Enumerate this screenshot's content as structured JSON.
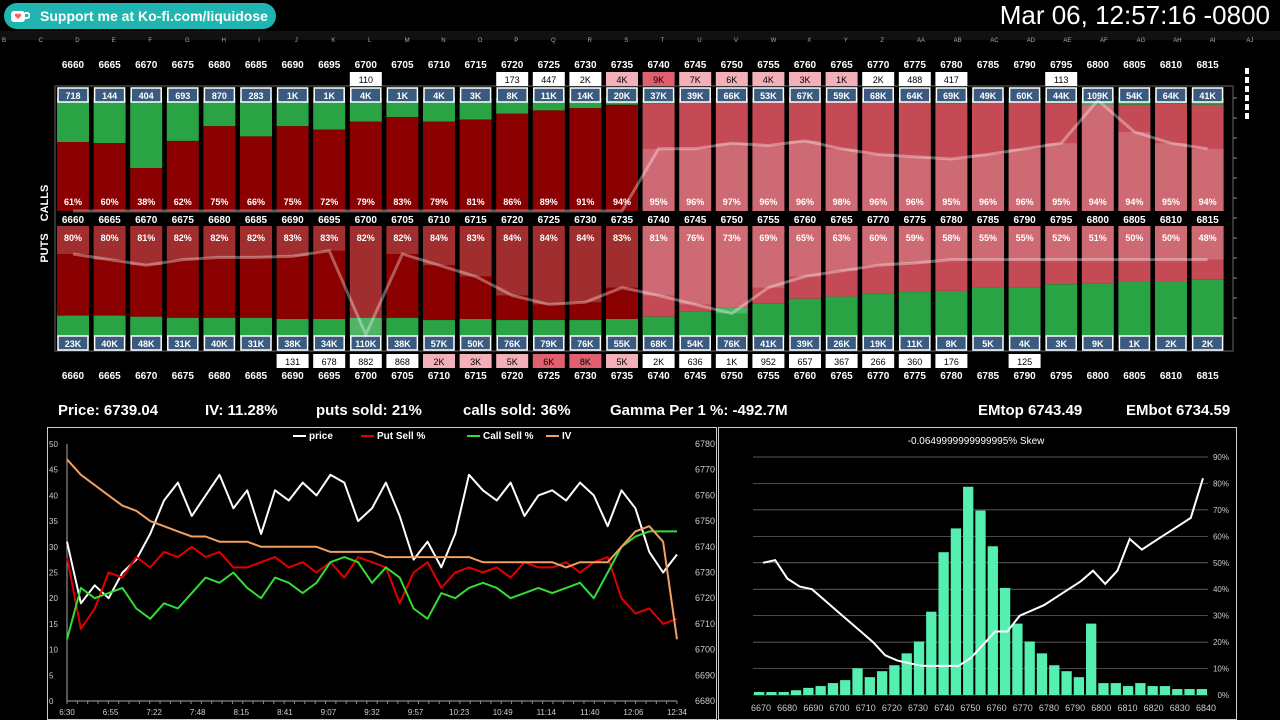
{
  "header": {
    "kofi_text": "Support me at Ko-fi.com/liquidose",
    "clock": "Mar 06, 12:57:16 -0800"
  },
  "sheet_columns": [
    "B",
    "C",
    "D",
    "E",
    "F",
    "G",
    "H",
    "I",
    "J",
    "K",
    "L",
    "M",
    "N",
    "O",
    "P",
    "Q",
    "R",
    "S",
    "T",
    "U",
    "V",
    "W",
    "X",
    "Y",
    "Z",
    "AA",
    "AB",
    "AC",
    "AD",
    "AE",
    "AF",
    "AG",
    "AH",
    "AI",
    "AJ"
  ],
  "labels": {
    "calls": "CALLS",
    "puts": "PUTS"
  },
  "stats": {
    "price": "Price: 6739.04",
    "iv": "IV: 11.28%",
    "puts_sold": "puts sold: 21%",
    "calls_sold": "calls sold: 36%",
    "gamma": "Gamma Per 1 %:  -492.7M",
    "emtop": "EMtop 6743.49",
    "embot": "EMbot 6734.59"
  },
  "colors": {
    "green": "#2aa345",
    "dark_red": "#8b0000",
    "light_red": "#c44a55",
    "white_band": "#e8e8e8",
    "chip": "#3a5a80",
    "line_price": "#ffffff",
    "line_put": "#e00000",
    "line_call": "#33dd33",
    "line_iv": "#f0a060",
    "hist_bar": "#55f0b0"
  },
  "chart_data": [
    {
      "type": "bar",
      "title": "",
      "strikes": [
        "6660",
        "6665",
        "6670",
        "6675",
        "6680",
        "6685",
        "6690",
        "6695",
        "6700",
        "6705",
        "6710",
        "6715",
        "6720",
        "6725",
        "6730",
        "6735",
        "6740",
        "6745",
        "6750",
        "6755",
        "6760",
        "6765",
        "6770",
        "6775",
        "6780",
        "6785",
        "6790",
        "6795",
        "6800",
        "6805",
        "6810",
        "6815"
      ],
      "calls": {
        "volume_top": [
          "",
          "",
          "",
          "",
          "",
          "",
          "",
          "",
          "110",
          "",
          "",
          "",
          "173",
          "447",
          "2K",
          "4K",
          "9K",
          "7K",
          "6K",
          "4K",
          "3K",
          "1K",
          "2K",
          "488",
          "417",
          "",
          "",
          "113",
          "",
          "",
          "",
          ""
        ],
        "chips": [
          "718",
          "144",
          "404",
          "693",
          "870",
          "283",
          "1K",
          "1K",
          "4K",
          "1K",
          "4K",
          "3K",
          "8K",
          "11K",
          "14K",
          "20K",
          "37K",
          "39K",
          "66K",
          "53K",
          "67K",
          "59K",
          "68K",
          "64K",
          "69K",
          "49K",
          "60K",
          "44K",
          "109K",
          "54K",
          "64K",
          "41K"
        ],
        "sell_pct": [
          61,
          60,
          38,
          62,
          75,
          66,
          75,
          72,
          79,
          83,
          79,
          81,
          86,
          89,
          91,
          94,
          95,
          96,
          97,
          96,
          96,
          98,
          96,
          96,
          95,
          96,
          96,
          95,
          94,
          94,
          95,
          94
        ],
        "sell_pct_labels": [
          "61%",
          "60%",
          "38%",
          "62%",
          "75%",
          "66%",
          "75%",
          "72%",
          "79%",
          "83%",
          "79%",
          "81%",
          "86%",
          "89%",
          "91%",
          "94%",
          "95%",
          "96%",
          "97%",
          "96%",
          "96%",
          "98%",
          "96%",
          "96%",
          "95%",
          "96%",
          "96%",
          "95%",
          "94%",
          "94%",
          "95%",
          "94%"
        ],
        "band": [
          0,
          0,
          0,
          0,
          0,
          0,
          0,
          0,
          0,
          0,
          0,
          0,
          0,
          0,
          0,
          0,
          0.55,
          0.55,
          0.6,
          0.58,
          0.62,
          0.55,
          0.5,
          0.48,
          0.46,
          0.5,
          0.55,
          0.6,
          0.98,
          0.7,
          0.6,
          0.55
        ]
      },
      "puts": {
        "chips": [
          "23K",
          "40K",
          "48K",
          "31K",
          "40K",
          "31K",
          "38K",
          "34K",
          "110K",
          "38K",
          "57K",
          "50K",
          "76K",
          "79K",
          "76K",
          "55K",
          "68K",
          "54K",
          "76K",
          "41K",
          "39K",
          "26K",
          "19K",
          "11K",
          "8K",
          "5K",
          "4K",
          "3K",
          "9K",
          "1K",
          "2K",
          "2K"
        ],
        "volume_bottom": [
          "",
          "",
          "",
          "",
          "",
          "",
          "131",
          "678",
          "882",
          "868",
          "2K",
          "3K",
          "5K",
          "6K",
          "8K",
          "5K",
          "2K",
          "636",
          "1K",
          "952",
          "657",
          "367",
          "266",
          "360",
          "176",
          "",
          "125",
          "",
          "",
          "",
          "",
          ""
        ],
        "sell_pct": [
          80,
          80,
          81,
          82,
          82,
          82,
          83,
          83,
          82,
          82,
          84,
          83,
          84,
          84,
          84,
          83,
          81,
          76,
          73,
          69,
          65,
          63,
          60,
          59,
          58,
          55,
          55,
          52,
          51,
          50,
          50,
          48
        ],
        "sell_pct_labels": [
          "80%",
          "80%",
          "81%",
          "82%",
          "82%",
          "82%",
          "83%",
          "83%",
          "82%",
          "82%",
          "84%",
          "83%",
          "84%",
          "84%",
          "84%",
          "83%",
          "81%",
          "76%",
          "73%",
          "69%",
          "65%",
          "63%",
          "60%",
          "59%",
          "58%",
          "55%",
          "55%",
          "52%",
          "51%",
          "50%",
          "50%",
          "48%"
        ],
        "band": [
          0.25,
          0.3,
          0.35,
          0.3,
          0.28,
          0.28,
          0.27,
          0.22,
          0.97,
          0.25,
          0.35,
          0.45,
          0.62,
          0.7,
          0.68,
          0.55,
          0.62,
          0.7,
          0.78,
          0.55,
          0.45,
          0.4,
          0.35,
          0.33,
          0.3,
          0.3,
          0.3,
          0.3,
          0.3,
          0.3,
          0.3,
          0.3
        ]
      }
    },
    {
      "type": "line",
      "legend": [
        "price",
        "Put Sell %",
        "Call Sell %",
        "IV"
      ],
      "x_ticks": [
        "6:30",
        "6:55",
        "7:22",
        "7:48",
        "8:15",
        "8:41",
        "9:07",
        "9:32",
        "9:57",
        "10:23",
        "10:49",
        "11:14",
        "11:40",
        "12:06",
        "12:34"
      ],
      "y_left_ticks": [
        0,
        5,
        10,
        15,
        20,
        25,
        30,
        35,
        40,
        45,
        50
      ],
      "y_right_ticks": [
        6680,
        6690,
        6700,
        6710,
        6720,
        6730,
        6740,
        6750,
        6760,
        6770,
        6780
      ],
      "ylim_left": [
        0,
        50
      ],
      "ylim_right": [
        6680,
        6780
      ],
      "series": [
        {
          "name": "price",
          "axis": "right",
          "values": [
            6742,
            6718,
            6725,
            6720,
            6730,
            6735,
            6745,
            6758,
            6765,
            6752,
            6760,
            6768,
            6755,
            6762,
            6745,
            6762,
            6758,
            6765,
            6760,
            6768,
            6765,
            6750,
            6755,
            6765,
            6752,
            6735,
            6742,
            6732,
            6745,
            6768,
            6762,
            6758,
            6765,
            6752,
            6760,
            6762,
            6758,
            6765,
            6760,
            6748,
            6762,
            6755,
            6738,
            6730,
            6737
          ]
        },
        {
          "name": "Put Sell %",
          "axis": "left",
          "values": [
            28,
            14,
            18,
            25,
            24,
            28,
            26,
            29,
            28,
            30,
            28,
            29,
            26,
            26,
            27,
            28,
            26,
            27,
            25,
            27,
            24,
            28,
            27,
            26,
            19,
            25,
            27,
            22,
            25,
            26,
            25,
            26,
            24,
            27,
            26,
            26,
            27,
            25,
            27,
            28,
            20,
            17,
            18,
            15,
            16
          ]
        },
        {
          "name": "Call Sell %",
          "axis": "left",
          "values": [
            12,
            22,
            20,
            21,
            22,
            18,
            16,
            19,
            18,
            21,
            24,
            23,
            25,
            22,
            20,
            24,
            23,
            21,
            23,
            27,
            28,
            27,
            23,
            26,
            24,
            18,
            16,
            21,
            20,
            22,
            23,
            22,
            20,
            21,
            22,
            21,
            22,
            23,
            20,
            25,
            30,
            32,
            33,
            33,
            33
          ]
        },
        {
          "name": "IV",
          "axis": "left",
          "values": [
            47,
            44,
            42,
            40,
            38,
            37,
            35,
            34,
            33,
            32,
            32,
            31,
            31,
            31,
            30,
            30,
            30,
            30,
            30,
            29,
            29,
            29,
            29,
            28,
            28,
            28,
            28,
            28,
            28,
            28,
            27,
            27,
            27,
            27,
            27,
            27,
            26,
            27,
            27,
            27,
            30,
            33,
            34,
            31,
            12
          ]
        }
      ]
    },
    {
      "type": "bar",
      "title": "-0.0649999999999995% Skew",
      "categories": [
        "6670",
        "6680",
        "6690",
        "6700",
        "6710",
        "6720",
        "6730",
        "6740",
        "6750",
        "6760",
        "6770",
        "6780",
        "6790",
        "6800",
        "6810",
        "6820",
        "6830",
        "6840"
      ],
      "y_right_ticks": [
        "0%",
        "10%",
        "20%",
        "30%",
        "40%",
        "50%",
        "60%",
        "70%",
        "80%",
        "90%"
      ],
      "bars": [
        0.5,
        0.5,
        0.5,
        0.8,
        1.2,
        1.5,
        2.0,
        2.5,
        4.5,
        3.0,
        4.0,
        5.0,
        7.0,
        9.0,
        14.0,
        24.0,
        28.0,
        35.0,
        31.0,
        25.0,
        18.0,
        12.0,
        9.0,
        7.0,
        5.0,
        4.0,
        3.0,
        12.0,
        2.0,
        2.0,
        1.5,
        2.0,
        1.5,
        1.5,
        1.0,
        1.0,
        1.0
      ],
      "line": [
        50,
        51,
        44,
        41,
        40,
        36,
        32,
        28,
        24,
        20,
        15,
        13,
        12,
        11,
        11,
        11,
        11,
        14,
        19,
        24,
        24,
        30,
        32,
        34,
        37,
        40,
        43,
        47,
        42,
        47,
        59,
        55,
        58,
        61,
        64,
        67,
        82
      ]
    }
  ]
}
